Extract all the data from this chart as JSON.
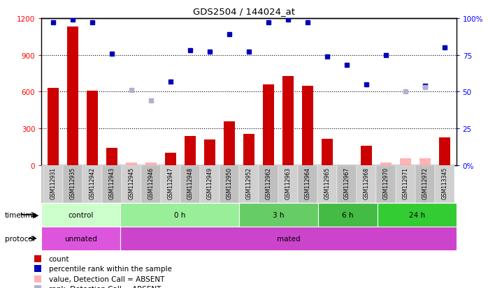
{
  "title": "GDS2504 / 144024_at",
  "samples": [
    "GSM112931",
    "GSM112935",
    "GSM112942",
    "GSM112943",
    "GSM112945",
    "GSM112946",
    "GSM112947",
    "GSM112948",
    "GSM112949",
    "GSM112950",
    "GSM112952",
    "GSM112962",
    "GSM112963",
    "GSM112964",
    "GSM112965",
    "GSM112967",
    "GSM112968",
    "GSM112970",
    "GSM112971",
    "GSM112972",
    "GSM113345"
  ],
  "counts": [
    630,
    1130,
    610,
    145,
    null,
    null,
    100,
    240,
    210,
    360,
    255,
    660,
    730,
    650,
    215,
    null,
    160,
    null,
    null,
    null,
    230
  ],
  "counts_absent": [
    null,
    null,
    null,
    null,
    22,
    22,
    null,
    null,
    null,
    null,
    null,
    null,
    null,
    null,
    null,
    null,
    null,
    22,
    55,
    55,
    null
  ],
  "ranks": [
    97,
    99,
    97,
    76,
    null,
    null,
    57,
    78,
    77,
    89,
    77,
    97,
    99,
    97,
    74,
    68,
    55,
    75,
    null,
    54,
    80
  ],
  "ranks_absent": [
    null,
    null,
    null,
    null,
    51,
    44,
    null,
    null,
    null,
    null,
    null,
    null,
    null,
    null,
    null,
    null,
    null,
    null,
    50,
    53,
    null
  ],
  "ylim_left": [
    0,
    1200
  ],
  "ylim_right": [
    0,
    100
  ],
  "yticks_left": [
    0,
    300,
    600,
    900,
    1200
  ],
  "ytick_labels_left": [
    "0",
    "300",
    "600",
    "900",
    "1200"
  ],
  "yticks_right": [
    0,
    25,
    50,
    75,
    100
  ],
  "ytick_labels_right": [
    "0%",
    "25",
    "50",
    "75",
    "100%"
  ],
  "bar_color": "#cc0000",
  "bar_absent_color": "#ffb3b3",
  "rank_color": "#0000bb",
  "rank_absent_color": "#b0b0d0",
  "time_groups": [
    {
      "label": "control",
      "start": 0,
      "end": 4,
      "color": "#ccffcc"
    },
    {
      "label": "0 h",
      "start": 4,
      "end": 10,
      "color": "#99ee99"
    },
    {
      "label": "3 h",
      "start": 10,
      "end": 14,
      "color": "#66cc66"
    },
    {
      "label": "6 h",
      "start": 14,
      "end": 17,
      "color": "#44bb44"
    },
    {
      "label": "24 h",
      "start": 17,
      "end": 21,
      "color": "#33cc33"
    }
  ],
  "protocol_groups": [
    {
      "label": "unmated",
      "start": 0,
      "end": 4,
      "color": "#dd55dd"
    },
    {
      "label": "mated",
      "start": 4,
      "end": 21,
      "color": "#cc44cc"
    }
  ],
  "legend_items": [
    {
      "label": "count",
      "color": "#cc0000"
    },
    {
      "label": "percentile rank within the sample",
      "color": "#0000bb"
    },
    {
      "label": "value, Detection Call = ABSENT",
      "color": "#ffb3b3"
    },
    {
      "label": "rank, Detection Call = ABSENT",
      "color": "#b0b0d0"
    }
  ]
}
